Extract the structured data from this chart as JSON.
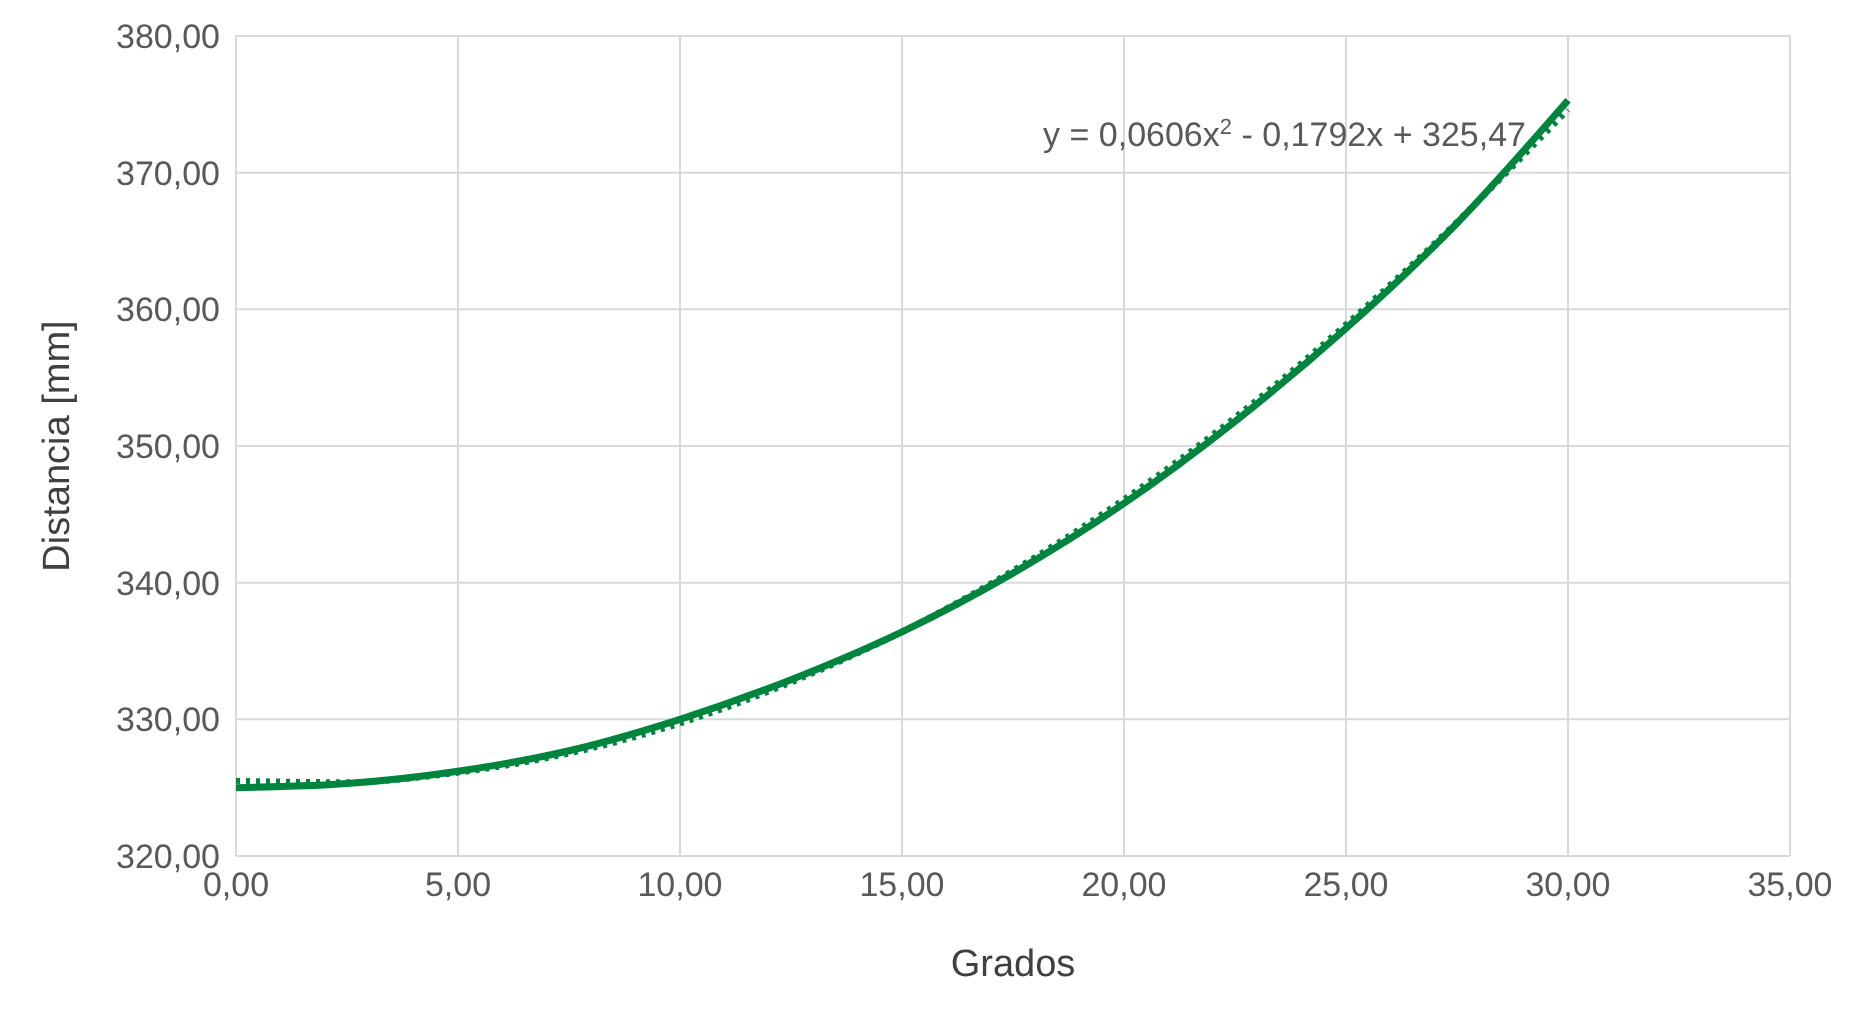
{
  "chart_data": {
    "type": "line",
    "xlabel": "Grados",
    "ylabel": "Distancia [mm]",
    "annotations": [
      "y = 0,0606x$^{2}$ - 0,1792x + 325,47"
    ],
    "series": [
      {
        "color": "#00853e",
        "line_style": "solid",
        "x": [
          0,
          2.5,
          5,
          7.5,
          10,
          12.5,
          15,
          17.5,
          20,
          22.5,
          25,
          27.5,
          30
        ],
        "values": [
          325.0,
          325.3,
          326.2,
          327.7,
          330.0,
          332.9,
          336.4,
          340.7,
          345.8,
          351.8,
          358.6,
          366.3,
          375.3
        ]
      },
      {
        "type": "line",
        "color": "#00853e",
        "line_style": "dotted",
        "x": [
          0,
          2.5,
          5,
          7.5,
          10,
          12.5,
          15,
          17.5,
          20,
          22.5,
          25,
          27.5,
          30
        ],
        "values": [
          325.5,
          325.4,
          326.1,
          327.5,
          329.7,
          332.7,
          336.4,
          340.9,
          346.1,
          352.1,
          358.9,
          366.4,
          374.6
        ]
      }
    ],
    "xlim": [
      0,
      35
    ],
    "xticks": [
      {
        "value": 0,
        "label": "0,00"
      },
      {
        "value": 5,
        "label": "5,00"
      },
      {
        "value": 10,
        "label": "10,00"
      },
      {
        "value": 15,
        "label": "15,00"
      },
      {
        "value": 20,
        "label": "20,00"
      },
      {
        "value": 25,
        "label": "25,00"
      },
      {
        "value": 30,
        "label": "30,00"
      },
      {
        "value": 35,
        "label": "35,00"
      }
    ],
    "ylim": [
      320,
      380
    ],
    "yticks": [
      {
        "value": 320,
        "label": "320,00"
      },
      {
        "value": 330,
        "label": "330,00"
      },
      {
        "value": 340,
        "label": "340,00"
      },
      {
        "value": 350,
        "label": "350,00"
      },
      {
        "value": 360,
        "label": "360,00"
      },
      {
        "value": 370,
        "label": "370,00"
      },
      {
        "value": 380,
        "label": "380,00"
      }
    ],
    "grid": true,
    "legend": false,
    "marker": "none"
  }
}
